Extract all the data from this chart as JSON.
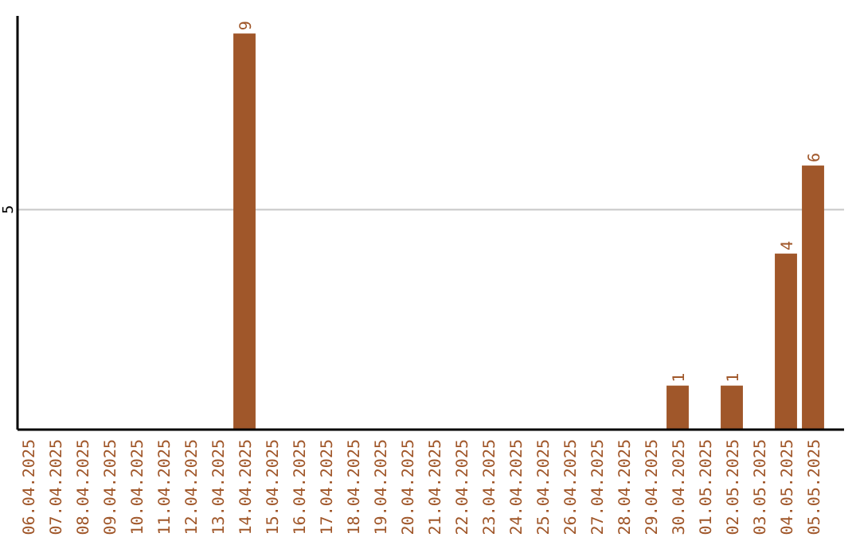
{
  "chart_data": {
    "type": "bar",
    "categories": [
      "06.04.2025",
      "07.04.2025",
      "08.04.2025",
      "09.04.2025",
      "10.04.2025",
      "11.04.2025",
      "12.04.2025",
      "13.04.2025",
      "14.04.2025",
      "15.04.2025",
      "16.04.2025",
      "17.04.2025",
      "18.04.2025",
      "19.04.2025",
      "20.04.2025",
      "21.04.2025",
      "22.04.2025",
      "23.04.2025",
      "24.04.2025",
      "25.04.2025",
      "26.04.2025",
      "27.04.2025",
      "28.04.2025",
      "29.04.2025",
      "30.04.2025",
      "01.05.2025",
      "02.05.2025",
      "03.05.2025",
      "04.05.2025",
      "05.05.2025"
    ],
    "values": [
      0,
      0,
      0,
      0,
      0,
      0,
      0,
      0,
      9,
      0,
      0,
      0,
      0,
      0,
      0,
      0,
      0,
      0,
      0,
      0,
      0,
      0,
      0,
      0,
      1,
      0,
      1,
      0,
      4,
      6
    ],
    "color": "#a0572a",
    "ylim": [
      0,
      9.4
    ],
    "yticks": [
      5
    ],
    "grid": "y",
    "value_labels": [
      null,
      null,
      null,
      null,
      null,
      null,
      null,
      null,
      "9",
      null,
      null,
      null,
      null,
      null,
      null,
      null,
      null,
      null,
      null,
      null,
      null,
      null,
      null,
      null,
      "1",
      null,
      "1",
      null,
      "4",
      "6"
    ]
  }
}
